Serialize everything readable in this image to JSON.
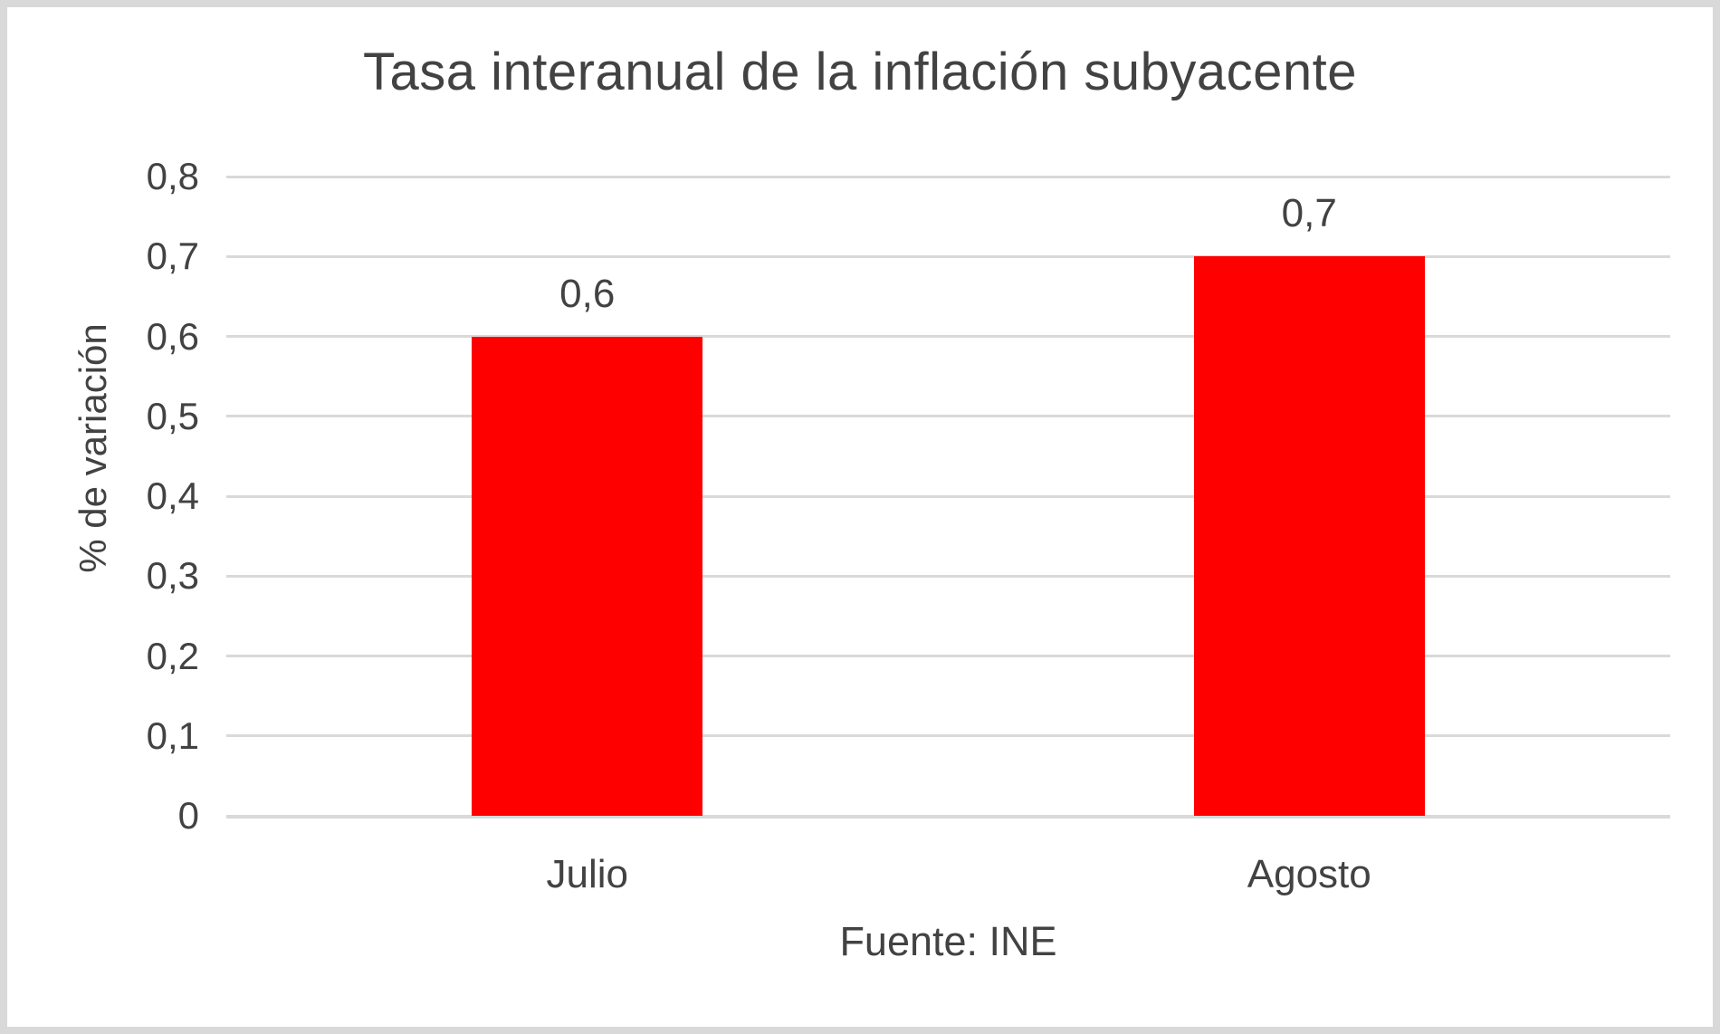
{
  "chart_data": {
    "type": "bar",
    "title": "Tasa interanual de la inflación subyacente",
    "ylabel": "% de variación",
    "xlabel": "",
    "source": "Fuente: INE",
    "categories": [
      "Julio",
      "Agosto"
    ],
    "values": [
      0.6,
      0.7
    ],
    "value_labels": [
      "0,6",
      "0,7"
    ],
    "yticks": [
      {
        "value": 0.8,
        "label": "0,8"
      },
      {
        "value": 0.7,
        "label": "0,7"
      },
      {
        "value": 0.6,
        "label": "0,6"
      },
      {
        "value": 0.5,
        "label": "0,5"
      },
      {
        "value": 0.4,
        "label": "0,4"
      },
      {
        "value": 0.3,
        "label": "0,3"
      },
      {
        "value": 0.2,
        "label": "0,2"
      },
      {
        "value": 0.1,
        "label": "0,1"
      },
      {
        "value": 0.0,
        "label": "0"
      }
    ],
    "ylim": [
      0,
      0.8
    ],
    "grid": true,
    "legend": false,
    "decimal_separator": ",",
    "colors": {
      "bar": "#FF0000",
      "text": "#424242",
      "gridline": "#D9D9D9",
      "frame_border": "#D9D9D9",
      "background": "#FFFFFF"
    }
  }
}
